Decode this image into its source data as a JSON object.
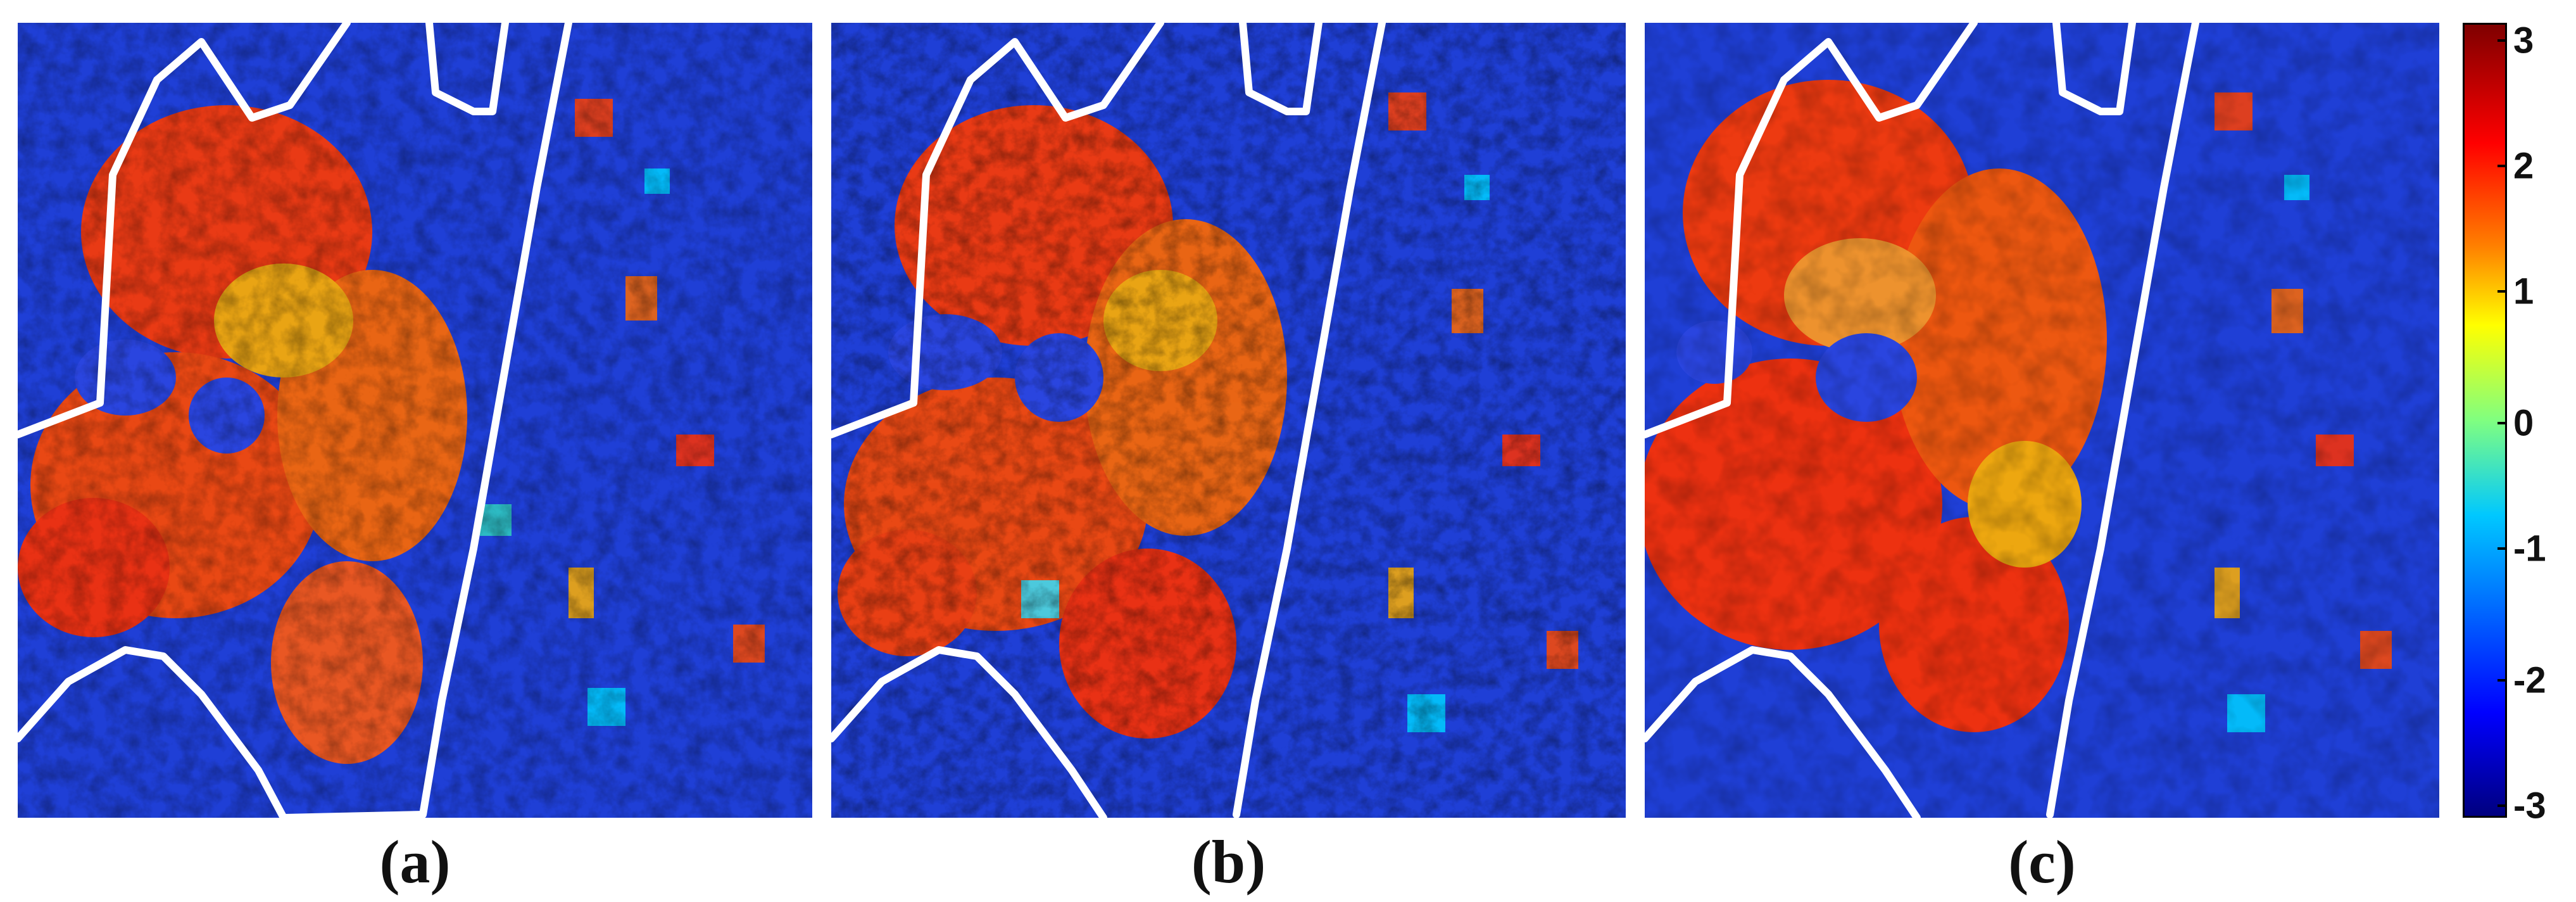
{
  "panels": [
    {
      "id": "a",
      "caption": "(a)"
    },
    {
      "id": "b",
      "caption": "(b)"
    },
    {
      "id": "c",
      "caption": "(c)"
    }
  ],
  "colorbar": {
    "ticks": [
      "3",
      "2",
      "1",
      "0",
      "-1",
      "-2",
      "-3"
    ],
    "range": [
      -3,
      3
    ],
    "colormap": "jet",
    "colors": {
      "high": "#7f0000",
      "mid": "#80ff80",
      "low": "#00007f"
    }
  },
  "overlay_color": "#ffffff"
}
